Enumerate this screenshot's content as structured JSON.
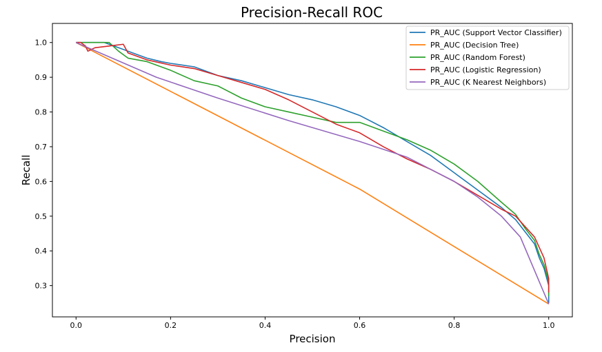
{
  "chart_data": {
    "type": "line",
    "title": "Precision-Recall ROC",
    "xlabel": "Precision",
    "ylabel": "Recall",
    "xlim": [
      -0.05,
      1.05
    ],
    "ylim": [
      0.21,
      1.055
    ],
    "xticks": [
      0.0,
      0.2,
      0.4,
      0.6,
      0.8,
      1.0
    ],
    "yticks": [
      0.3,
      0.4,
      0.5,
      0.6,
      0.7,
      0.8,
      0.9,
      1.0
    ],
    "grid": false,
    "legend_position": "top-right",
    "series": [
      {
        "name": "PR_AUC (Support Vector Classifier)",
        "color": "#1f77b4",
        "x": [
          0.0,
          0.03,
          0.06,
          0.08,
          0.1,
          0.12,
          0.15,
          0.18,
          0.2,
          0.25,
          0.3,
          0.35,
          0.4,
          0.45,
          0.5,
          0.55,
          0.6,
          0.65,
          0.7,
          0.75,
          0.8,
          0.85,
          0.9,
          0.93,
          0.95,
          0.97,
          0.98,
          0.99,
          1.0,
          1.0
        ],
        "y": [
          1.0,
          1.0,
          1.0,
          0.99,
          0.98,
          0.97,
          0.955,
          0.945,
          0.94,
          0.93,
          0.905,
          0.89,
          0.87,
          0.85,
          0.835,
          0.815,
          0.79,
          0.755,
          0.715,
          0.675,
          0.625,
          0.575,
          0.525,
          0.49,
          0.455,
          0.42,
          0.38,
          0.35,
          0.3,
          0.25
        ]
      },
      {
        "name": "PR_AUC (Decision Tree)",
        "color": "#ff7f0e",
        "x": [
          0.0,
          0.6,
          1.0
        ],
        "y": [
          1.0,
          0.578,
          0.247
        ]
      },
      {
        "name": "PR_AUC (Random Forest)",
        "color": "#2ca02c",
        "x": [
          0.0,
          0.07,
          0.09,
          0.11,
          0.15,
          0.2,
          0.25,
          0.3,
          0.35,
          0.4,
          0.45,
          0.5,
          0.55,
          0.6,
          0.65,
          0.7,
          0.75,
          0.8,
          0.85,
          0.9,
          0.93,
          0.95,
          0.97,
          0.98,
          0.99,
          1.0,
          1.0
        ],
        "y": [
          1.0,
          1.0,
          0.975,
          0.955,
          0.945,
          0.92,
          0.89,
          0.875,
          0.84,
          0.815,
          0.8,
          0.785,
          0.77,
          0.77,
          0.745,
          0.72,
          0.69,
          0.65,
          0.6,
          0.54,
          0.505,
          0.465,
          0.43,
          0.39,
          0.36,
          0.31,
          0.27
        ]
      },
      {
        "name": "PR_AUC (Logistic Regression)",
        "color": "#d62728",
        "x": [
          0.0,
          0.01,
          0.02,
          0.025,
          0.04,
          0.07,
          0.1,
          0.11,
          0.13,
          0.15,
          0.2,
          0.25,
          0.3,
          0.35,
          0.4,
          0.45,
          0.5,
          0.55,
          0.6,
          0.65,
          0.7,
          0.75,
          0.8,
          0.85,
          0.9,
          0.93,
          0.95,
          0.97,
          0.98,
          0.99,
          0.995,
          1.0,
          1.0
        ],
        "y": [
          1.0,
          1.0,
          0.99,
          0.975,
          0.985,
          0.99,
          0.995,
          0.97,
          0.96,
          0.95,
          0.935,
          0.925,
          0.905,
          0.885,
          0.865,
          0.835,
          0.8,
          0.765,
          0.74,
          0.7,
          0.665,
          0.635,
          0.6,
          0.56,
          0.52,
          0.5,
          0.47,
          0.44,
          0.41,
          0.38,
          0.35,
          0.32,
          0.28
        ]
      },
      {
        "name": "PR_AUC (K Nearest Neighbors)",
        "color": "#9467bd",
        "x": [
          0.0,
          0.17,
          0.3,
          0.45,
          0.6,
          0.7,
          0.8,
          0.85,
          0.9,
          0.94,
          1.0
        ],
        "y": [
          1.0,
          0.9,
          0.84,
          0.775,
          0.715,
          0.67,
          0.6,
          0.555,
          0.5,
          0.44,
          0.247
        ]
      }
    ]
  }
}
